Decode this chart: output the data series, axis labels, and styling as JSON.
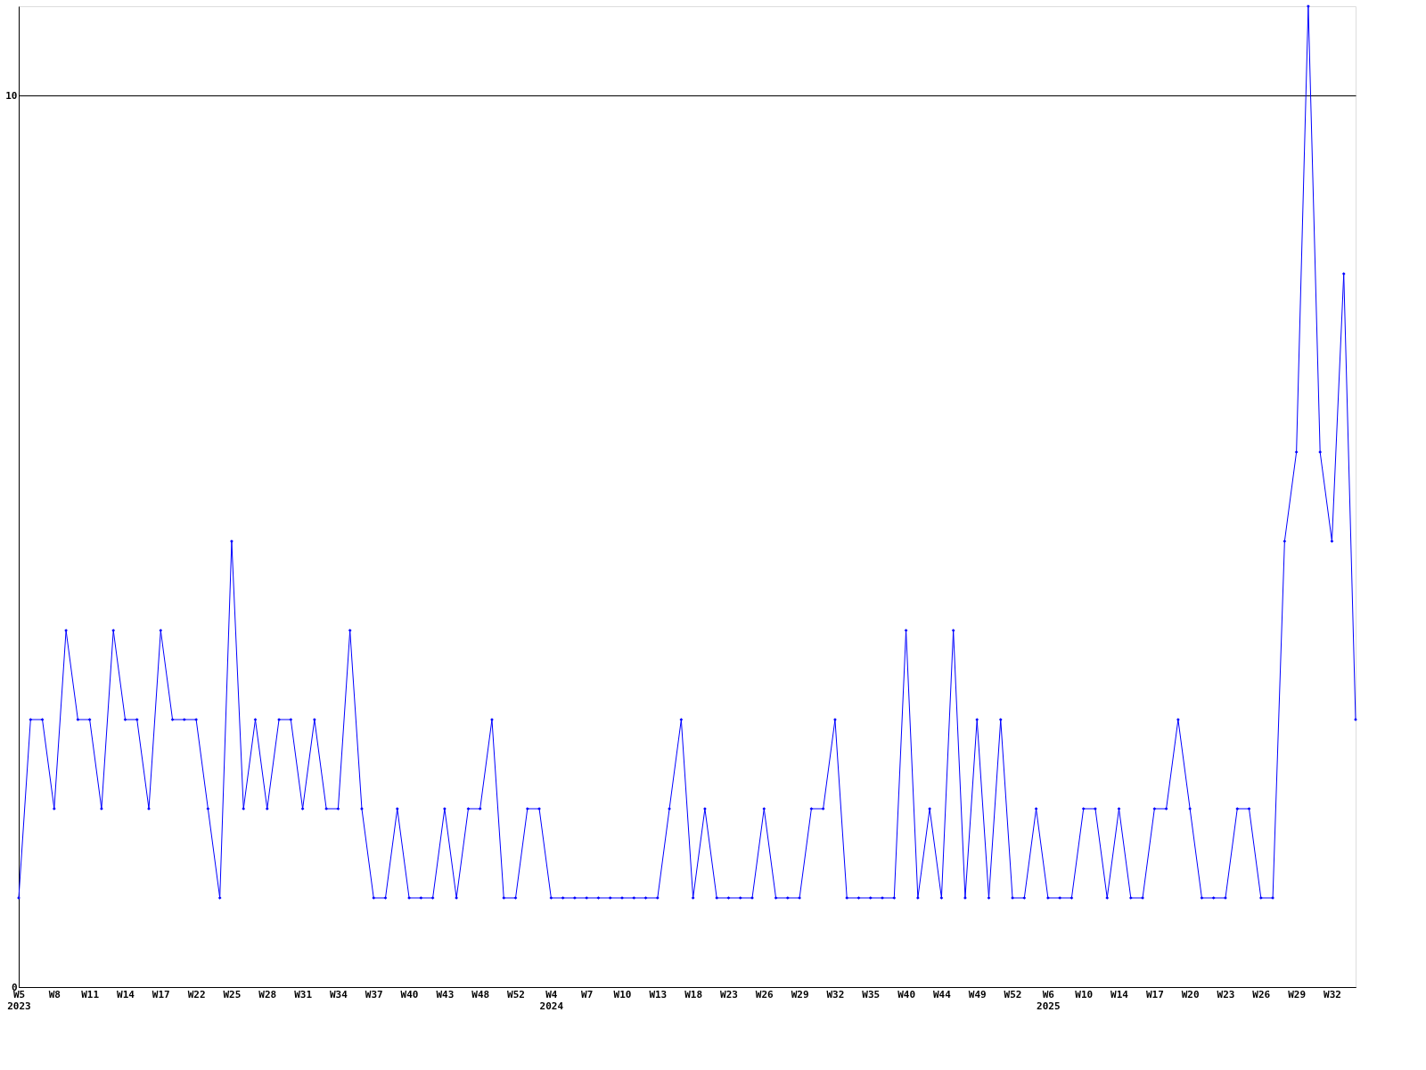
{
  "chart_data": {
    "type": "line",
    "categories": [
      "W5\n2023",
      null,
      null,
      "W8",
      null,
      null,
      "W11",
      null,
      null,
      "W14",
      null,
      null,
      "W17",
      null,
      null,
      "W22",
      null,
      null,
      "W25",
      null,
      null,
      "W28",
      null,
      null,
      "W31",
      null,
      null,
      "W34",
      null,
      null,
      "W37",
      null,
      null,
      "W40",
      null,
      null,
      "W43",
      null,
      null,
      "W48",
      null,
      null,
      "W52",
      null,
      null,
      "W4\n2024",
      null,
      null,
      "W7",
      null,
      null,
      "W10",
      null,
      null,
      "W13",
      null,
      null,
      "W18",
      null,
      null,
      "W23",
      null,
      null,
      "W26",
      null,
      null,
      "W29",
      null,
      null,
      "W32",
      null,
      null,
      "W35",
      null,
      null,
      "W40",
      null,
      null,
      "W44",
      null,
      null,
      "W49",
      null,
      null,
      "W52",
      null,
      null,
      "W6\n2025",
      null,
      null,
      "W10",
      null,
      null,
      "W14",
      null,
      null,
      "W17",
      null,
      null,
      "W20",
      null,
      null,
      "W23",
      null,
      null,
      "W26",
      null,
      null,
      "W29",
      null,
      null,
      "W32",
      null,
      null
    ],
    "series": [
      {
        "color": "#0000ff",
        "values": [
          1,
          3,
          3,
          2,
          4,
          3,
          3,
          2,
          4,
          3,
          3,
          2,
          4,
          3,
          3,
          3,
          2,
          1,
          5,
          2,
          3,
          2,
          3,
          3,
          2,
          3,
          2,
          2,
          4,
          2,
          1,
          1,
          2,
          1,
          1,
          1,
          2,
          1,
          2,
          2,
          3,
          1,
          1,
          2,
          2,
          1,
          1,
          1,
          1,
          1,
          1,
          1,
          1,
          1,
          1,
          2,
          3,
          1,
          2,
          1,
          1,
          1,
          1,
          2,
          1,
          1,
          1,
          2,
          2,
          3,
          1,
          1,
          1,
          1,
          1,
          4,
          1,
          2,
          1,
          4,
          1,
          3,
          1,
          3,
          1,
          1,
          2,
          1,
          1,
          1,
          2,
          2,
          1,
          2,
          1,
          1,
          2,
          2,
          3,
          2,
          1,
          1,
          1,
          2,
          2,
          1,
          1,
          5,
          6,
          11,
          6,
          5,
          8,
          3
        ]
      }
    ],
    "ylim": [
      0,
      11
    ],
    "yticks": [
      0,
      10
    ],
    "grid": "y",
    "marker": "diamond",
    "line_style": "solid"
  }
}
